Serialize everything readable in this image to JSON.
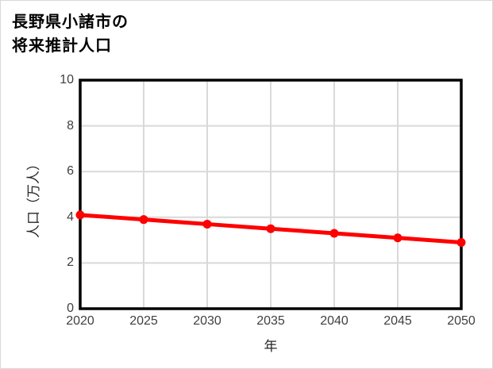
{
  "title": {
    "line1": "長野県小諸市の",
    "line2": "将来推計人口"
  },
  "chart_data": {
    "type": "line",
    "title": "長野県小諸市の将来推計人口",
    "x": [
      2020,
      2025,
      2030,
      2035,
      2040,
      2045,
      2050
    ],
    "series": [
      {
        "name": "将来推計人口",
        "values": [
          4.1,
          3.9,
          3.7,
          3.5,
          3.3,
          3.1,
          2.9
        ]
      }
    ],
    "xlabel": "年",
    "ylabel": "人口（万人）",
    "xlim": [
      2020,
      2050
    ],
    "ylim": [
      0,
      10
    ],
    "x_ticks": [
      "2020",
      "2025",
      "2030",
      "2035",
      "2040",
      "2045",
      "2050"
    ],
    "y_ticks": [
      "0",
      "2",
      "4",
      "6",
      "8",
      "10"
    ],
    "grid": true,
    "legend": false,
    "marker": "circle"
  },
  "colors": {
    "line": "#ff0000",
    "grid": "#d9d9d9",
    "plot_border": "#000000",
    "tick_text": "#404040",
    "axis_title_text": "#262626",
    "title_text": "#000000"
  }
}
